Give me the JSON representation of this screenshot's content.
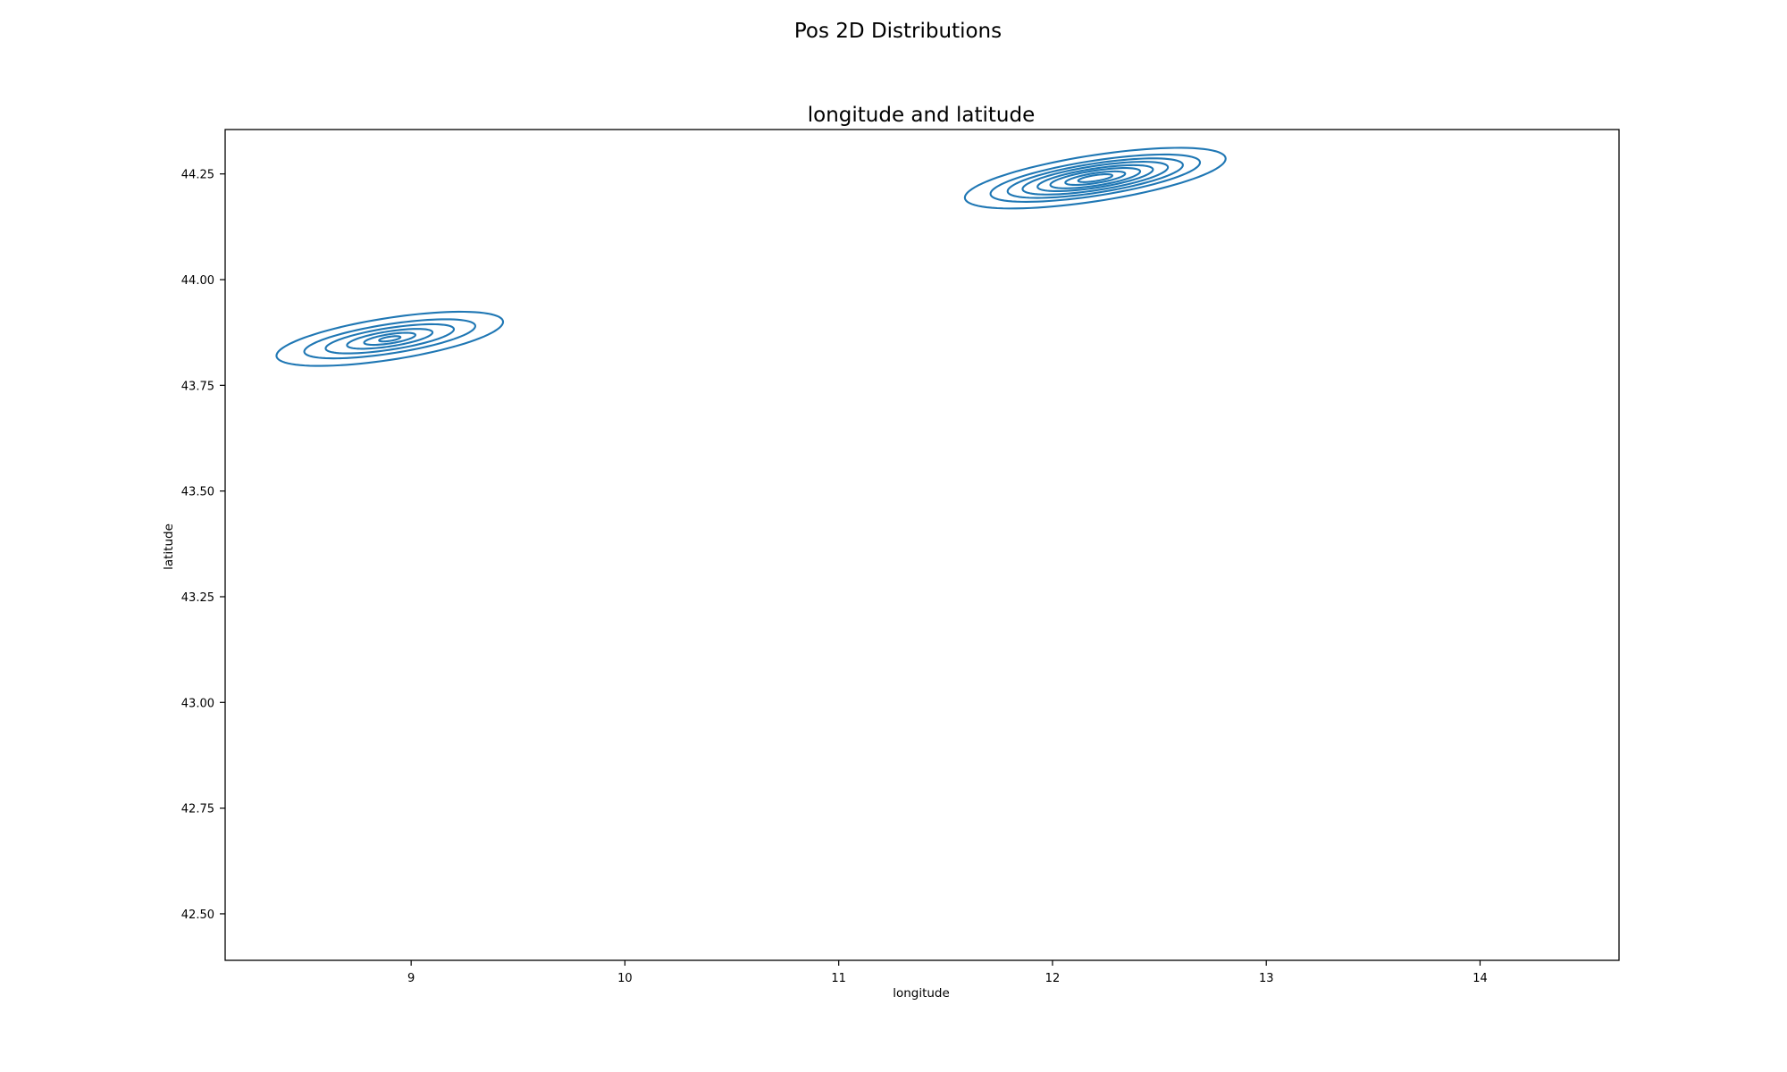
{
  "figure": {
    "suptitle": "Pos 2D Distributions"
  },
  "chart_data": {
    "type": "contour",
    "title": "longitude and latitude",
    "xlabel": "longitude",
    "ylabel": "latitude",
    "xlim": [
      8.13,
      14.65
    ],
    "ylim": [
      42.39,
      44.355
    ],
    "xticks": [
      9,
      10,
      11,
      12,
      13,
      14
    ],
    "yticks": [
      42.5,
      42.75,
      43.0,
      43.25,
      43.5,
      43.75,
      44.0,
      44.25
    ],
    "ytick_format": "2dp",
    "grid": false,
    "legend": "none",
    "color": "#1f77b4",
    "clusters": [
      {
        "center": [
          8.9,
          43.86
        ],
        "contours": [
          {
            "half_width": 0.53,
            "half_height": 0.05,
            "angle_deg": 8.5
          },
          {
            "half_width": 0.4,
            "half_height": 0.035,
            "angle_deg": 8.5
          },
          {
            "half_width": 0.3,
            "half_height": 0.026,
            "angle_deg": 8.5
          },
          {
            "half_width": 0.2,
            "half_height": 0.018,
            "angle_deg": 8.5
          },
          {
            "half_width": 0.12,
            "half_height": 0.011,
            "angle_deg": 8.5
          },
          {
            "half_width": 0.05,
            "half_height": 0.005,
            "angle_deg": 8.5
          }
        ]
      },
      {
        "center": [
          12.2,
          44.24
        ],
        "contours": [
          {
            "half_width": 0.61,
            "half_height": 0.055,
            "angle_deg": 8.5
          },
          {
            "half_width": 0.49,
            "half_height": 0.042,
            "angle_deg": 8.5
          },
          {
            "half_width": 0.41,
            "half_height": 0.035,
            "angle_deg": 8.5
          },
          {
            "half_width": 0.34,
            "half_height": 0.029,
            "angle_deg": 8.5
          },
          {
            "half_width": 0.27,
            "half_height": 0.023,
            "angle_deg": 8.5
          },
          {
            "half_width": 0.21,
            "half_height": 0.018,
            "angle_deg": 8.5
          },
          {
            "half_width": 0.14,
            "half_height": 0.012,
            "angle_deg": 8.5
          },
          {
            "half_width": 0.08,
            "half_height": 0.007,
            "angle_deg": 8.5
          }
        ]
      }
    ]
  }
}
